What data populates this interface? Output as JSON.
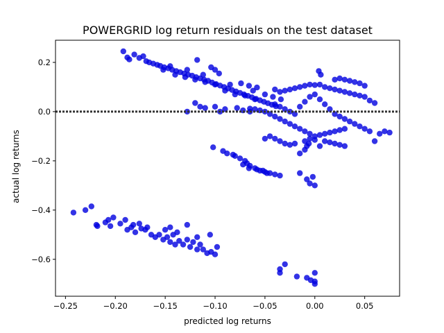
{
  "chart_data": {
    "type": "scatter",
    "title": "POWERGRID log return residuals on the test dataset",
    "xlabel": "predicted log returns",
    "ylabel": "actual log returns",
    "xlim": [
      -0.26,
      0.085
    ],
    "ylim": [
      -0.75,
      0.29
    ],
    "xticks": [
      -0.25,
      -0.2,
      -0.15,
      -0.1,
      -0.05,
      0.0,
      0.05
    ],
    "xtick_labels": [
      "−0.25",
      "−0.20",
      "−0.15",
      "−0.10",
      "−0.05",
      "0.00",
      "0.05"
    ],
    "yticks": [
      0.2,
      0.0,
      -0.2,
      -0.4,
      -0.6
    ],
    "ytick_labels": [
      "0.2",
      "0.0",
      "−0.2",
      "−0.4",
      "−0.6"
    ],
    "grid": false,
    "reference_line": {
      "y": 0.0,
      "style": "dotted",
      "color": "#333333"
    },
    "point_color": "#0000e0",
    "series": [
      {
        "points": [
          [
            -0.192,
            0.245
          ],
          [
            -0.188,
            0.22
          ],
          [
            -0.186,
            0.212
          ],
          [
            -0.181,
            0.232
          ],
          [
            -0.176,
            0.218
          ],
          [
            -0.172,
            0.225
          ],
          [
            -0.169,
            0.205
          ],
          [
            -0.166,
            0.2
          ],
          [
            -0.162,
            0.195
          ],
          [
            -0.158,
            0.19
          ],
          [
            -0.155,
            0.186
          ],
          [
            -0.151,
            0.18
          ],
          [
            -0.147,
            0.176
          ],
          [
            -0.143,
            0.17
          ],
          [
            -0.139,
            0.165
          ],
          [
            -0.135,
            0.16
          ],
          [
            -0.131,
            0.155
          ],
          [
            -0.127,
            0.15
          ],
          [
            -0.123,
            0.146
          ],
          [
            -0.119,
            0.14
          ],
          [
            -0.115,
            0.135
          ],
          [
            -0.111,
            0.13
          ],
          [
            -0.107,
            0.125
          ],
          [
            -0.103,
            0.118
          ],
          [
            -0.099,
            0.112
          ],
          [
            -0.095,
            0.106
          ],
          [
            -0.091,
            0.1
          ],
          [
            -0.087,
            0.094
          ],
          [
            -0.083,
            0.088
          ],
          [
            -0.079,
            0.082
          ],
          [
            -0.075,
            0.076
          ],
          [
            -0.071,
            0.07
          ],
          [
            -0.067,
            0.064
          ],
          [
            -0.063,
            0.058
          ],
          [
            -0.059,
            0.052
          ],
          [
            -0.055,
            0.046
          ],
          [
            -0.051,
            0.04
          ],
          [
            -0.047,
            0.034
          ],
          [
            -0.043,
            0.028
          ],
          [
            -0.039,
            0.022
          ],
          [
            -0.152,
            0.17
          ],
          [
            -0.14,
            0.15
          ],
          [
            -0.13,
            0.14
          ],
          [
            -0.12,
            0.13
          ],
          [
            -0.11,
            0.12
          ],
          [
            -0.1,
            0.11
          ],
          [
            -0.09,
            0.085
          ],
          [
            -0.08,
            0.07
          ],
          [
            -0.07,
            0.065
          ],
          [
            -0.06,
            0.05
          ],
          [
            -0.118,
            0.21
          ],
          [
            -0.104,
            0.18
          ],
          [
            -0.1,
            0.17
          ],
          [
            -0.096,
            0.155
          ],
          [
            -0.074,
            0.115
          ],
          [
            -0.066,
            0.105
          ],
          [
            -0.058,
            0.098
          ],
          [
            -0.145,
            0.185
          ],
          [
            -0.128,
            0.17
          ],
          [
            -0.112,
            0.15
          ],
          [
            -0.085,
            0.11
          ],
          [
            -0.062,
            0.085
          ],
          [
            -0.05,
            0.07
          ],
          [
            -0.042,
            0.06
          ],
          [
            -0.034,
            0.05
          ],
          [
            -0.04,
            0.09
          ],
          [
            -0.035,
            0.08
          ],
          [
            -0.03,
            0.085
          ],
          [
            -0.025,
            0.09
          ],
          [
            -0.02,
            0.095
          ],
          [
            -0.015,
            0.1
          ],
          [
            -0.01,
            0.105
          ],
          [
            -0.005,
            0.11
          ],
          [
            0.0,
            0.108
          ],
          [
            0.005,
            0.11
          ],
          [
            0.01,
            0.1
          ],
          [
            0.015,
            0.095
          ],
          [
            0.02,
            0.09
          ],
          [
            0.025,
            0.085
          ],
          [
            0.03,
            0.08
          ],
          [
            0.035,
            0.075
          ],
          [
            0.04,
            0.07
          ],
          [
            0.045,
            0.065
          ],
          [
            0.05,
            0.06
          ],
          [
            0.055,
            0.045
          ],
          [
            0.06,
            0.035
          ],
          [
            0.004,
            0.165
          ],
          [
            0.006,
            0.15
          ],
          [
            0.02,
            0.13
          ],
          [
            0.025,
            0.135
          ],
          [
            0.03,
            0.13
          ],
          [
            0.035,
            0.125
          ],
          [
            0.04,
            0.12
          ],
          [
            0.045,
            0.115
          ],
          [
            0.05,
            0.105
          ],
          [
            -0.04,
            0.03
          ],
          [
            -0.035,
            0.02
          ],
          [
            -0.03,
            0.01
          ],
          [
            -0.025,
            0.0
          ],
          [
            -0.02,
            -0.01
          ],
          [
            -0.015,
            0.02
          ],
          [
            -0.01,
            0.04
          ],
          [
            -0.005,
            0.06
          ],
          [
            0.0,
            0.07
          ],
          [
            0.005,
            0.05
          ],
          [
            0.01,
            0.03
          ],
          [
            0.015,
            0.01
          ],
          [
            0.02,
            -0.01
          ],
          [
            0.025,
            -0.02
          ],
          [
            0.03,
            -0.03
          ],
          [
            0.035,
            -0.04
          ],
          [
            0.04,
            -0.05
          ],
          [
            0.045,
            -0.06
          ],
          [
            0.05,
            -0.07
          ],
          [
            0.055,
            -0.08
          ],
          [
            -0.04,
            -0.02
          ],
          [
            -0.035,
            -0.03
          ],
          [
            -0.03,
            -0.04
          ],
          [
            -0.025,
            -0.05
          ],
          [
            -0.02,
            -0.06
          ],
          [
            -0.015,
            -0.07
          ],
          [
            -0.01,
            -0.08
          ],
          [
            -0.005,
            -0.09
          ],
          [
            0.0,
            -0.1
          ],
          [
            0.005,
            -0.095
          ],
          [
            0.01,
            -0.09
          ],
          [
            0.015,
            -0.085
          ],
          [
            0.02,
            -0.08
          ],
          [
            0.025,
            -0.075
          ],
          [
            0.03,
            -0.07
          ],
          [
            -0.045,
            -0.01
          ],
          [
            -0.05,
            0.0
          ],
          [
            -0.055,
            0.005
          ],
          [
            -0.06,
            0.01
          ],
          [
            -0.065,
            0.012
          ],
          [
            -0.045,
            -0.1
          ],
          [
            -0.04,
            -0.11
          ],
          [
            -0.035,
            -0.12
          ],
          [
            -0.03,
            -0.13
          ],
          [
            -0.025,
            -0.135
          ],
          [
            -0.02,
            -0.13
          ],
          [
            -0.01,
            -0.12
          ],
          [
            -0.005,
            -0.11
          ],
          [
            0.0,
            -0.115
          ],
          [
            0.01,
            -0.12
          ],
          [
            0.015,
            -0.125
          ],
          [
            0.02,
            -0.13
          ],
          [
            0.025,
            -0.135
          ],
          [
            0.03,
            -0.14
          ],
          [
            -0.05,
            -0.11
          ],
          [
            -0.006,
            -0.13
          ],
          [
            -0.008,
            -0.14
          ],
          [
            -0.01,
            -0.155
          ],
          [
            -0.015,
            -0.17
          ],
          [
            0.005,
            -0.14
          ],
          [
            0.075,
            -0.085
          ],
          [
            0.07,
            -0.08
          ],
          [
            0.06,
            -0.12
          ],
          [
            0.065,
            -0.09
          ],
          [
            -0.12,
            0.035
          ],
          [
            -0.115,
            0.02
          ],
          [
            -0.11,
            0.015
          ],
          [
            -0.1,
            0.02
          ],
          [
            -0.09,
            0.01
          ],
          [
            -0.072,
            0.005
          ],
          [
            -0.065,
            0.0
          ],
          [
            -0.128,
            0.0
          ],
          [
            -0.095,
            0.0
          ],
          [
            -0.078,
            0.015
          ],
          [
            -0.102,
            -0.145
          ],
          [
            -0.092,
            -0.16
          ],
          [
            -0.088,
            -0.17
          ],
          [
            -0.082,
            -0.175
          ],
          [
            -0.08,
            -0.18
          ],
          [
            -0.075,
            -0.19
          ],
          [
            -0.07,
            -0.2
          ],
          [
            -0.068,
            -0.21
          ],
          [
            -0.065,
            -0.22
          ],
          [
            -0.06,
            -0.23
          ],
          [
            -0.055,
            -0.24
          ],
          [
            -0.05,
            -0.245
          ],
          [
            -0.045,
            -0.25
          ],
          [
            -0.04,
            -0.255
          ],
          [
            -0.035,
            -0.26
          ],
          [
            -0.072,
            -0.215
          ],
          [
            -0.066,
            -0.23
          ],
          [
            -0.058,
            -0.235
          ],
          [
            -0.052,
            -0.24
          ],
          [
            -0.048,
            -0.25
          ],
          [
            -0.015,
            -0.25
          ],
          [
            -0.008,
            -0.275
          ],
          [
            -0.005,
            -0.292
          ],
          [
            0.0,
            -0.3
          ],
          [
            -0.002,
            -0.265
          ],
          [
            -0.242,
            -0.41
          ],
          [
            -0.23,
            -0.4
          ],
          [
            -0.224,
            -0.385
          ],
          [
            -0.219,
            -0.46
          ],
          [
            -0.218,
            -0.465
          ],
          [
            -0.21,
            -0.45
          ],
          [
            -0.207,
            -0.44
          ],
          [
            -0.205,
            -0.465
          ],
          [
            -0.202,
            -0.43
          ],
          [
            -0.195,
            -0.455
          ],
          [
            -0.19,
            -0.44
          ],
          [
            -0.188,
            -0.48
          ],
          [
            -0.184,
            -0.47
          ],
          [
            -0.182,
            -0.46
          ],
          [
            -0.18,
            -0.49
          ],
          [
            -0.176,
            -0.455
          ],
          [
            -0.174,
            -0.475
          ],
          [
            -0.17,
            -0.48
          ],
          [
            -0.168,
            -0.47
          ],
          [
            -0.164,
            -0.5
          ],
          [
            -0.16,
            -0.51
          ],
          [
            -0.156,
            -0.5
          ],
          [
            -0.152,
            -0.52
          ],
          [
            -0.148,
            -0.51
          ],
          [
            -0.145,
            -0.53
          ],
          [
            -0.142,
            -0.5
          ],
          [
            -0.14,
            -0.54
          ],
          [
            -0.136,
            -0.525
          ],
          [
            -0.132,
            -0.54
          ],
          [
            -0.128,
            -0.52
          ],
          [
            -0.125,
            -0.55
          ],
          [
            -0.122,
            -0.53
          ],
          [
            -0.118,
            -0.56
          ],
          [
            -0.115,
            -0.54
          ],
          [
            -0.112,
            -0.56
          ],
          [
            -0.108,
            -0.575
          ],
          [
            -0.104,
            -0.57
          ],
          [
            -0.1,
            -0.58
          ],
          [
            -0.105,
            -0.5
          ],
          [
            -0.098,
            -0.55
          ],
          [
            -0.15,
            -0.48
          ],
          [
            -0.145,
            -0.47
          ],
          [
            -0.128,
            -0.46
          ],
          [
            -0.138,
            -0.49
          ],
          [
            -0.118,
            -0.51
          ],
          [
            -0.035,
            -0.64
          ],
          [
            -0.035,
            -0.655
          ],
          [
            -0.03,
            -0.62
          ],
          [
            -0.018,
            -0.67
          ],
          [
            -0.008,
            -0.675
          ],
          [
            -0.004,
            -0.685
          ],
          [
            0.0,
            -0.69
          ],
          [
            0.0,
            -0.7
          ],
          [
            0.0,
            -0.655
          ]
        ]
      }
    ]
  }
}
